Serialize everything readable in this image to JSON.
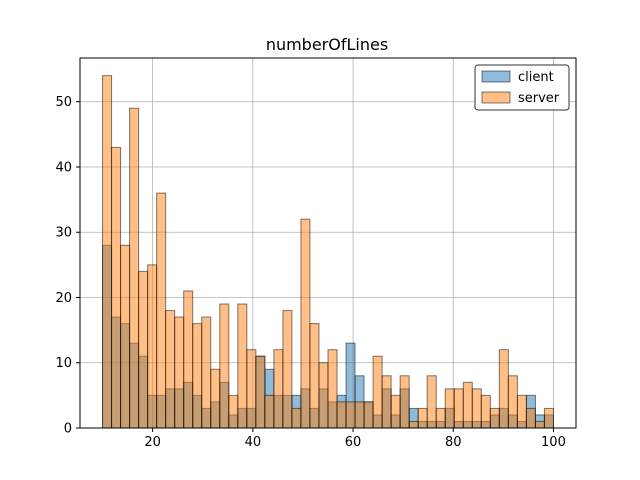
{
  "chart_data": {
    "type": "bar",
    "subtype": "histogram-overlay",
    "title": "numberOfLines",
    "xlabel": "",
    "ylabel": "",
    "xlim": [
      5.5,
      104.5
    ],
    "ylim": [
      0,
      56.7
    ],
    "xticks": [
      20,
      40,
      60,
      80,
      100
    ],
    "yticks": [
      0,
      10,
      20,
      30,
      40,
      50
    ],
    "grid": true,
    "legend": "top-right",
    "bin_start": 10,
    "bin_width": 1.8,
    "series": [
      {
        "name": "client",
        "color": "#1f77b4",
        "values": [
          28,
          17,
          16,
          13,
          11,
          5,
          5,
          6,
          6,
          7,
          5,
          3,
          4,
          7,
          2,
          3,
          3,
          11,
          9,
          5,
          5,
          5,
          6,
          3,
          6,
          4,
          5,
          13,
          8,
          4,
          2,
          6,
          2,
          6,
          3,
          1,
          1,
          1,
          3,
          1,
          1,
          1,
          1,
          2,
          3,
          2,
          1,
          5,
          2,
          2
        ]
      },
      {
        "name": "server",
        "color": "#ff7f0e",
        "values": [
          54,
          43,
          28,
          49,
          24,
          25,
          36,
          18,
          17,
          21,
          16,
          17,
          9,
          19,
          5,
          19,
          12,
          11,
          5,
          12,
          18,
          3,
          32,
          16,
          10,
          12,
          4,
          4,
          4,
          4,
          11,
          8,
          5,
          8,
          1,
          3,
          8,
          3,
          6,
          6,
          7,
          6,
          5,
          3,
          12,
          8,
          5,
          3,
          1,
          3
        ]
      }
    ]
  }
}
